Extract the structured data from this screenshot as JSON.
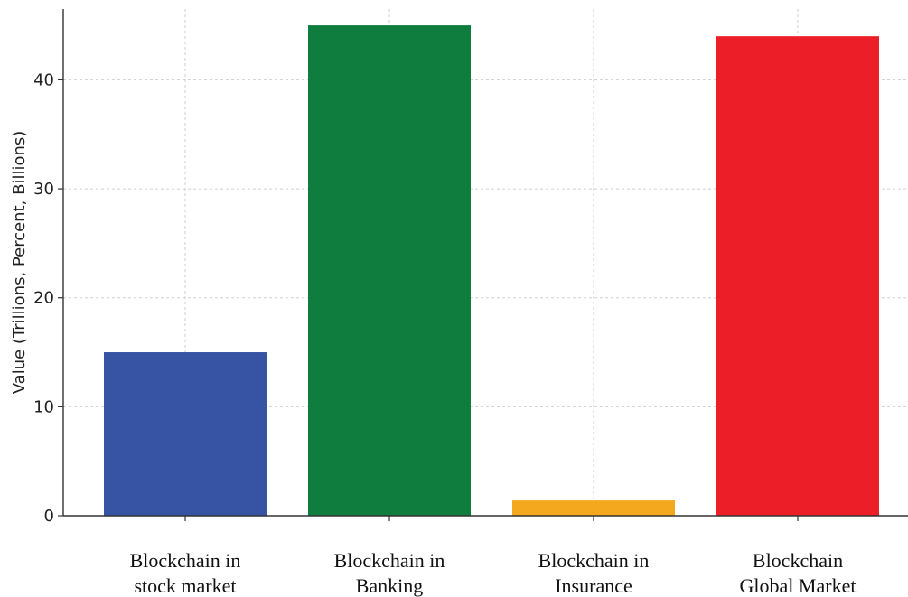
{
  "chart_data": {
    "type": "bar",
    "title": "",
    "xlabel": "",
    "ylabel": "Value (Trillions, Percent, Billions)",
    "categories": [
      "Blockchain in stock market",
      "Blockchain in Banking",
      "Blockchain in Insurance",
      "Blockchain Global Market"
    ],
    "category_lines": [
      [
        "Blockchain in",
        "stock market"
      ],
      [
        "Blockchain in",
        "Banking"
      ],
      [
        "Blockchain in",
        "Insurance"
      ],
      [
        "Blockchain",
        "Global Market"
      ]
    ],
    "values": [
      15,
      45,
      1.4,
      44
    ],
    "colors": [
      "#3653a4",
      "#0f7d3d",
      "#f4a81d",
      "#ec1f28"
    ],
    "ylim": [
      0,
      46.5
    ],
    "yticks": [
      0,
      10,
      20,
      30,
      40
    ],
    "grid": true,
    "legend": "none"
  }
}
